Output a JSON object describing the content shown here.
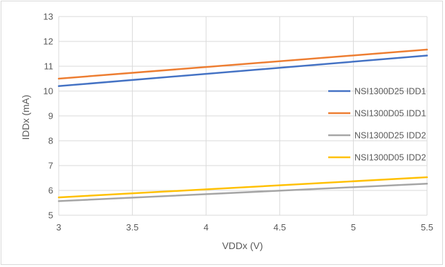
{
  "chart_data": {
    "type": "line",
    "title": "",
    "xlabel": "VDDx (V)",
    "ylabel": "IDDx (mA)",
    "xlim": [
      3,
      5.5
    ],
    "ylim": [
      5,
      13
    ],
    "x_ticks": [
      "3",
      "3.5",
      "4",
      "4.5",
      "5",
      "5.5"
    ],
    "y_ticks": [
      "5",
      "6",
      "7",
      "8",
      "9",
      "10",
      "11",
      "12",
      "13"
    ],
    "grid": true,
    "legend_position": "right",
    "x": [
      3,
      5.5
    ],
    "series": [
      {
        "name": "NSI1300D25 IDD1",
        "color": "#4472c4",
        "values": [
          10.2,
          11.43
        ]
      },
      {
        "name": "NSI1300D05 IDD1",
        "color": "#ed7d31",
        "values": [
          10.5,
          11.67
        ]
      },
      {
        "name": "NSI1300D25 IDD2",
        "color": "#a5a5a5",
        "values": [
          5.57,
          6.27
        ]
      },
      {
        "name": "NSI1300D05 IDD2",
        "color": "#ffc000",
        "values": [
          5.72,
          6.53
        ]
      }
    ]
  }
}
